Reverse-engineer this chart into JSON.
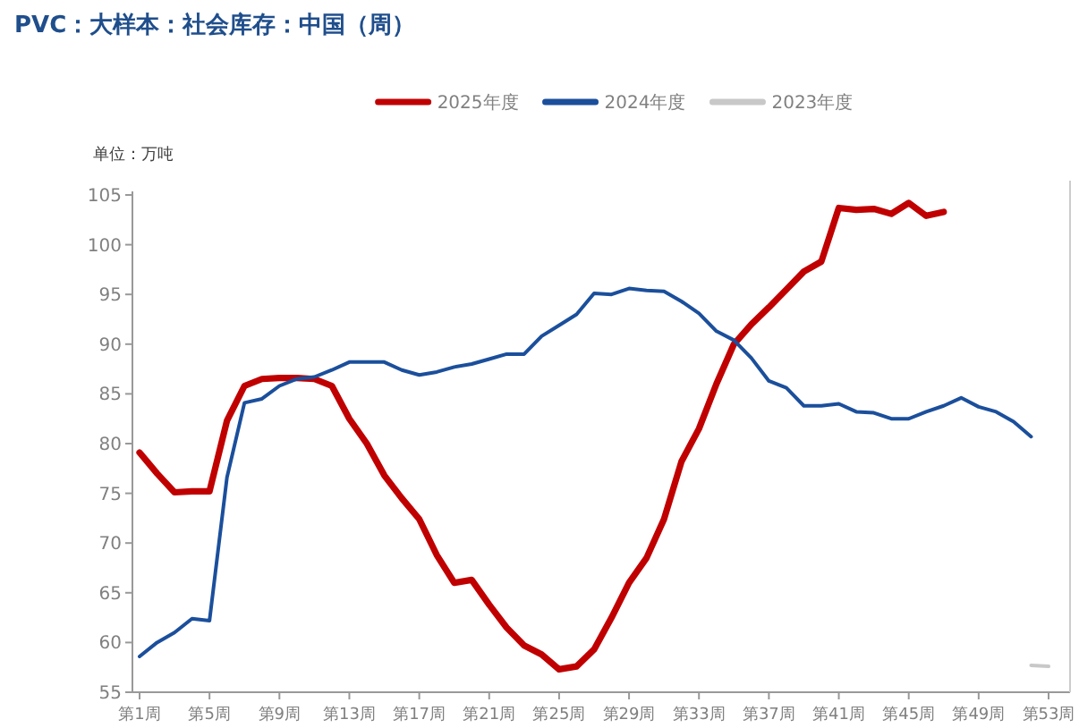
{
  "chart_data": {
    "type": "line",
    "title": "PVC：大样本：社会库存：中国（周）",
    "ylabel": "单位：万吨",
    "categories": [
      "第1周",
      null,
      null,
      null,
      "第5周",
      null,
      null,
      null,
      "第9周",
      null,
      null,
      null,
      "第13周",
      null,
      null,
      null,
      "第17周",
      null,
      null,
      null,
      "第21周",
      null,
      null,
      null,
      "第25周",
      null,
      null,
      null,
      "第29周",
      null,
      null,
      null,
      "第33周",
      null,
      null,
      null,
      "第37周",
      null,
      null,
      null,
      "第41周",
      null,
      null,
      null,
      "第45周",
      null,
      null,
      null,
      "第49周",
      null,
      null,
      null,
      "第53周"
    ],
    "series": [
      {
        "name": "2025年度",
        "color": "#c00000",
        "values": [
          79.1,
          77.0,
          75.1,
          75.2,
          75.2,
          82.3,
          85.8,
          86.5,
          86.6,
          86.6,
          86.5,
          85.8,
          82.5,
          80.0,
          76.8,
          74.5,
          72.4,
          68.8,
          66.0,
          66.3,
          63.8,
          61.5,
          59.7,
          58.8,
          57.3,
          57.6,
          59.3,
          62.5,
          66.0,
          68.5,
          72.4,
          78.2,
          81.5,
          86.0,
          90.0,
          92.0,
          93.7,
          95.5,
          97.3,
          98.3,
          103.7,
          103.5,
          103.6,
          103.1,
          104.2,
          102.9,
          103.3,
          null,
          null,
          null,
          null,
          null,
          null
        ]
      },
      {
        "name": "2024年度",
        "color": "#1b4f9c",
        "values": [
          58.6,
          60.0,
          61.0,
          62.4,
          62.2,
          76.6,
          84.1,
          84.5,
          85.8,
          86.5,
          86.7,
          87.4,
          88.2,
          88.2,
          88.2,
          87.4,
          86.9,
          87.2,
          87.7,
          88.0,
          88.5,
          89.0,
          89.0,
          90.8,
          91.9,
          93.0,
          95.1,
          95.0,
          95.6,
          95.4,
          95.3,
          94.3,
          93.1,
          91.3,
          90.4,
          88.6,
          86.3,
          85.6,
          83.8,
          83.8,
          84.0,
          83.2,
          83.1,
          82.5,
          82.5,
          83.2,
          83.8,
          84.6,
          83.7,
          83.2,
          82.2,
          80.7,
          null
        ]
      },
      {
        "name": "2023年度",
        "color": "#c8c8c8",
        "values": [
          null,
          null,
          null,
          null,
          null,
          null,
          null,
          null,
          null,
          null,
          null,
          null,
          null,
          null,
          null,
          null,
          null,
          null,
          null,
          null,
          null,
          null,
          null,
          null,
          null,
          null,
          null,
          null,
          null,
          null,
          null,
          null,
          null,
          null,
          null,
          null,
          null,
          null,
          null,
          null,
          null,
          null,
          null,
          null,
          null,
          null,
          null,
          null,
          null,
          null,
          null,
          57.7,
          57.6
        ]
      }
    ],
    "ylim": [
      55,
      105
    ],
    "yticks": [
      55,
      60,
      65,
      70,
      75,
      80,
      85,
      90,
      95,
      100,
      105
    ],
    "legend": "top",
    "grid": false
  }
}
